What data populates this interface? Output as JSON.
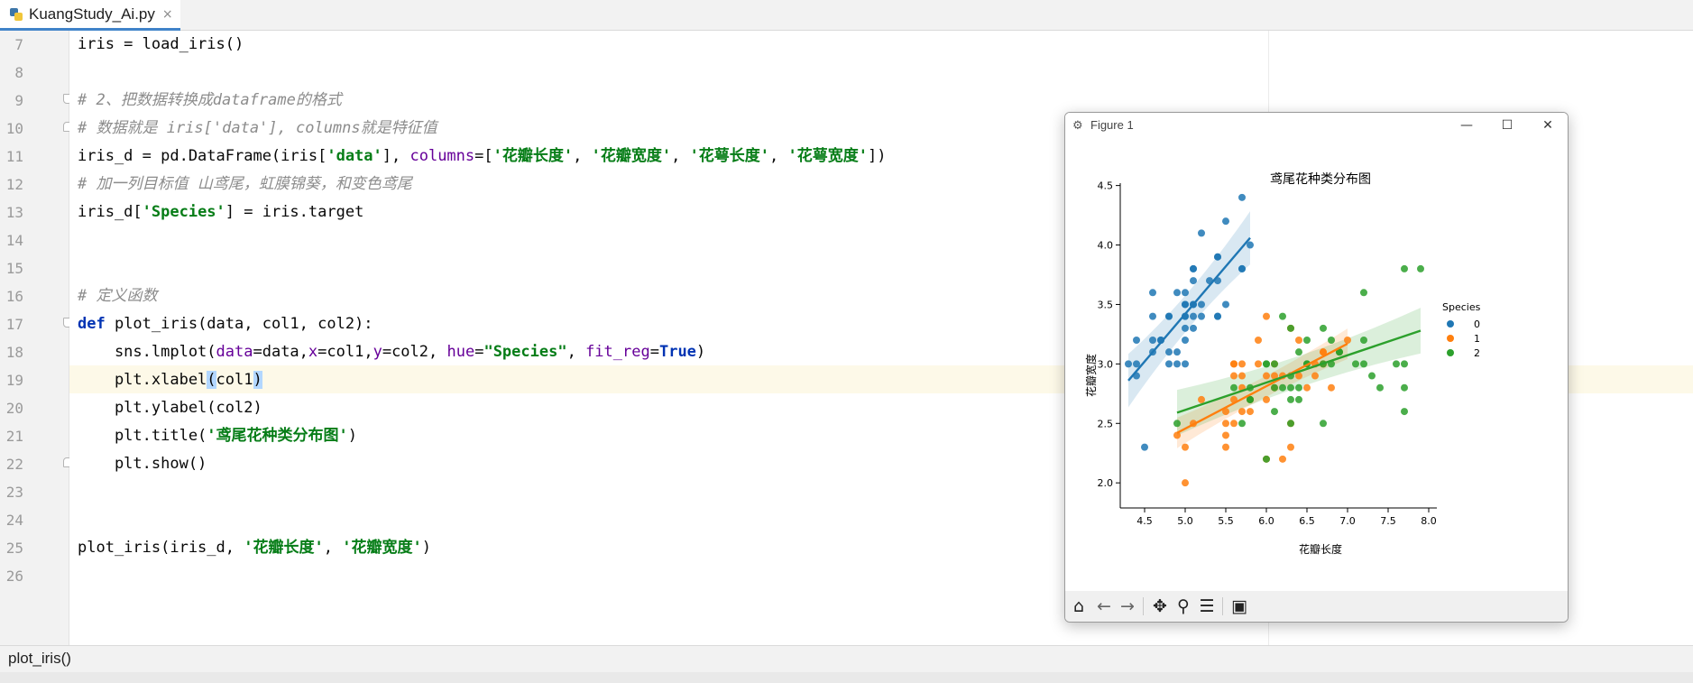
{
  "tab": {
    "filename": "KuangStudy_Ai.py",
    "close": "×"
  },
  "lines": [
    {
      "n": "7"
    },
    {
      "n": "8"
    },
    {
      "n": "9"
    },
    {
      "n": "10"
    },
    {
      "n": "11"
    },
    {
      "n": "12"
    },
    {
      "n": "13"
    },
    {
      "n": "14"
    },
    {
      "n": "15"
    },
    {
      "n": "16"
    },
    {
      "n": "17"
    },
    {
      "n": "18"
    },
    {
      "n": "19"
    },
    {
      "n": "20"
    },
    {
      "n": "21"
    },
    {
      "n": "22"
    },
    {
      "n": "23"
    },
    {
      "n": "24"
    },
    {
      "n": "25"
    },
    {
      "n": "26"
    }
  ],
  "code": {
    "l7": "iris = load_iris()",
    "l9": "# 2、把数据转换成dataframe的格式",
    "l10": "# 数据就是 iris['data'], columns就是特征值",
    "l11_a": "iris_d = pd.DataFrame(iris[",
    "l11_b": "'data'",
    "l11_c": "], ",
    "l11_d": "columns",
    "l11_e": "=[",
    "l11_f": "'花瓣长度'",
    "l11_g": ", ",
    "l11_h": "'花瓣宽度'",
    "l11_i": ", ",
    "l11_j": "'花萼长度'",
    "l11_k": ", ",
    "l11_l": "'花萼宽度'",
    "l11_m": "])",
    "l12": "# 加一列目标值 山鸢尾，虹膜锦葵，和变色鸢尾",
    "l13_a": "iris_d[",
    "l13_b": "'Species'",
    "l13_c": "] = iris.target",
    "l16": "# 定义函数",
    "l17_a": "def",
    "l17_b": " plot_iris(data, col1, col2):",
    "l18_a": "    sns.lmplot(",
    "l18_b": "data",
    "l18_c": "=data,",
    "l18_d": "x",
    "l18_e": "=col1,",
    "l18_f": "y",
    "l18_g": "=col2, ",
    "l18_h": "hue",
    "l18_i": "=",
    "l18_j": "\"Species\"",
    "l18_k": ", ",
    "l18_l": "fit_reg",
    "l18_m": "=",
    "l18_n": "True",
    "l18_o": ")",
    "l19_a": "    plt.xlabel",
    "l19_b": "(",
    "l19_c": "col1",
    "l19_d": ")",
    "l20": "    plt.ylabel(col2)",
    "l21_a": "    plt.title(",
    "l21_b": "'鸢尾花种类分布图'",
    "l21_c": ")",
    "l22": "    plt.show()",
    "l25_a": "plot_iris(iris_d, ",
    "l25_b": "'花瓣长度'",
    "l25_c": ", ",
    "l25_d": "'花瓣宽度'",
    "l25_e": ")"
  },
  "status": {
    "breadcrumb": "plot_iris()"
  },
  "figure": {
    "window_title": "Figure 1",
    "minimize": "—",
    "maximize": "☐",
    "close": "✕",
    "toolbar": [
      "home-icon",
      "back-icon",
      "forward-icon",
      "pan-icon",
      "zoom-icon",
      "configure-icon",
      "save-icon"
    ]
  },
  "chart_data": {
    "type": "scatter",
    "title": "鸢尾花种类分布图",
    "xlabel": "花瓣长度",
    "ylabel": "花瓣宽度",
    "xlim": [
      4.2,
      8.1
    ],
    "ylim": [
      1.88,
      4.52
    ],
    "xticks": [
      "4.5",
      "5.0",
      "5.5",
      "6.0",
      "6.5",
      "7.0",
      "7.5",
      "8.0"
    ],
    "yticks": [
      "2.0",
      "2.5",
      "3.0",
      "3.5",
      "4.0",
      "4.5"
    ],
    "legend": {
      "title": "Species",
      "position": "right"
    },
    "series": [
      {
        "name": "0",
        "color": "#1f77b4",
        "x": [
          4.3,
          4.4,
          4.4,
          4.4,
          4.5,
          4.6,
          4.6,
          4.6,
          4.6,
          4.7,
          4.7,
          4.8,
          4.8,
          4.8,
          4.8,
          4.9,
          4.9,
          4.9,
          5.0,
          5.0,
          5.0,
          5.0,
          5.0,
          5.0,
          5.0,
          5.0,
          5.1,
          5.1,
          5.1,
          5.1,
          5.1,
          5.1,
          5.1,
          5.2,
          5.2,
          5.2,
          5.3,
          5.4,
          5.4,
          5.4,
          5.4,
          5.4,
          5.5,
          5.5,
          5.7,
          5.7,
          5.7,
          5.8
        ],
        "y": [
          3.0,
          2.9,
          3.0,
          3.2,
          2.3,
          3.1,
          3.2,
          3.4,
          3.6,
          3.2,
          3.2,
          3.0,
          3.1,
          3.4,
          3.4,
          3.0,
          3.1,
          3.6,
          3.0,
          3.2,
          3.3,
          3.4,
          3.4,
          3.5,
          3.5,
          3.6,
          3.3,
          3.4,
          3.5,
          3.5,
          3.7,
          3.8,
          3.8,
          3.4,
          3.5,
          4.1,
          3.7,
          3.4,
          3.4,
          3.7,
          3.9,
          3.9,
          3.5,
          4.2,
          3.8,
          4.4,
          3.8,
          4.0
        ],
        "fit": {
          "x": [
            4.3,
            5.8
          ],
          "y": [
            2.86,
            4.06
          ]
        }
      },
      {
        "name": "1",
        "color": "#ff7f0e",
        "x": [
          4.9,
          5.0,
          5.0,
          5.1,
          5.2,
          5.5,
          5.5,
          5.5,
          5.5,
          5.6,
          5.6,
          5.6,
          5.6,
          5.6,
          5.7,
          5.7,
          5.7,
          5.7,
          5.8,
          5.8,
          5.8,
          5.9,
          5.9,
          6.0,
          6.0,
          6.0,
          6.0,
          6.1,
          6.1,
          6.1,
          6.2,
          6.2,
          6.3,
          6.3,
          6.3,
          6.4,
          6.4,
          6.5,
          6.6,
          6.6,
          6.7,
          6.7,
          6.7,
          6.8,
          6.9,
          7.0
        ],
        "y": [
          2.4,
          2.0,
          2.3,
          2.5,
          2.7,
          2.3,
          2.4,
          2.5,
          2.6,
          2.5,
          2.7,
          2.9,
          3.0,
          3.0,
          2.6,
          2.8,
          2.9,
          3.0,
          2.6,
          2.7,
          2.7,
          3.0,
          3.2,
          2.2,
          2.7,
          2.9,
          3.4,
          2.8,
          2.9,
          3.0,
          2.2,
          2.9,
          2.3,
          2.5,
          3.3,
          2.9,
          3.2,
          2.8,
          2.9,
          3.0,
          3.0,
          3.1,
          3.1,
          2.8,
          3.1,
          3.2
        ],
        "fit": {
          "x": [
            4.9,
            7.0
          ],
          "y": [
            2.42,
            3.17
          ]
        }
      },
      {
        "name": "2",
        "color": "#2ca02c",
        "x": [
          4.9,
          5.6,
          5.7,
          5.8,
          5.8,
          5.8,
          6.0,
          6.0,
          6.0,
          6.1,
          6.1,
          6.1,
          6.2,
          6.2,
          6.3,
          6.3,
          6.3,
          6.3,
          6.3,
          6.4,
          6.4,
          6.4,
          6.5,
          6.5,
          6.5,
          6.7,
          6.7,
          6.7,
          6.8,
          6.8,
          6.9,
          6.9,
          7.1,
          7.2,
          7.2,
          7.2,
          7.3,
          7.4,
          7.6,
          7.7,
          7.7,
          7.7,
          7.7,
          7.9
        ],
        "y": [
          2.5,
          2.8,
          2.5,
          2.7,
          2.8,
          2.7,
          2.2,
          3.0,
          3.0,
          2.6,
          3.0,
          2.8,
          2.8,
          3.4,
          2.5,
          2.7,
          2.9,
          3.3,
          2.8,
          2.7,
          2.8,
          3.1,
          3.0,
          3.0,
          3.2,
          2.5,
          3.0,
          3.3,
          3.0,
          3.2,
          3.1,
          3.1,
          3.0,
          3.0,
          3.2,
          3.6,
          2.9,
          2.8,
          3.0,
          2.6,
          2.8,
          3.0,
          3.8,
          3.8
        ],
        "fit": {
          "x": [
            4.9,
            7.9
          ],
          "y": [
            2.59,
            3.28
          ]
        }
      }
    ]
  }
}
